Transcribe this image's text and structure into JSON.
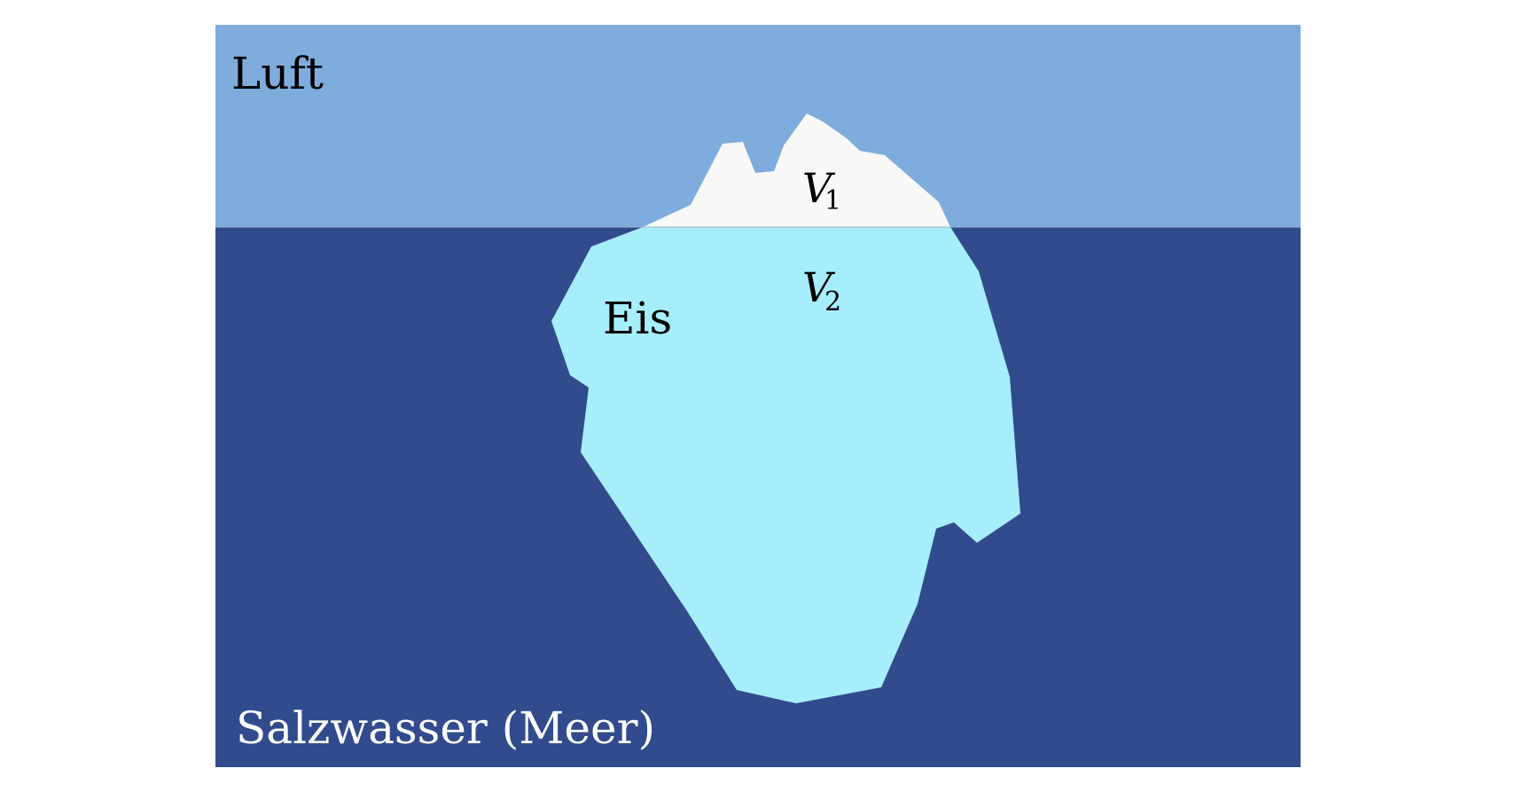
{
  "diagram": {
    "air_label": "Luft",
    "water_label": "Salzwasser (Meer)",
    "ice_label": "Eis",
    "volume_above": {
      "symbol": "V",
      "subscript": "1"
    },
    "volume_below": {
      "symbol": "V",
      "subscript": "2"
    }
  },
  "colors": {
    "air": "#7eacdc",
    "seawater": "#314b8c",
    "ice_above_water": "#f8f8f8",
    "ice_below_water": "#a6eefc",
    "text_dark": "#000000",
    "text_light": "#ffffff"
  }
}
